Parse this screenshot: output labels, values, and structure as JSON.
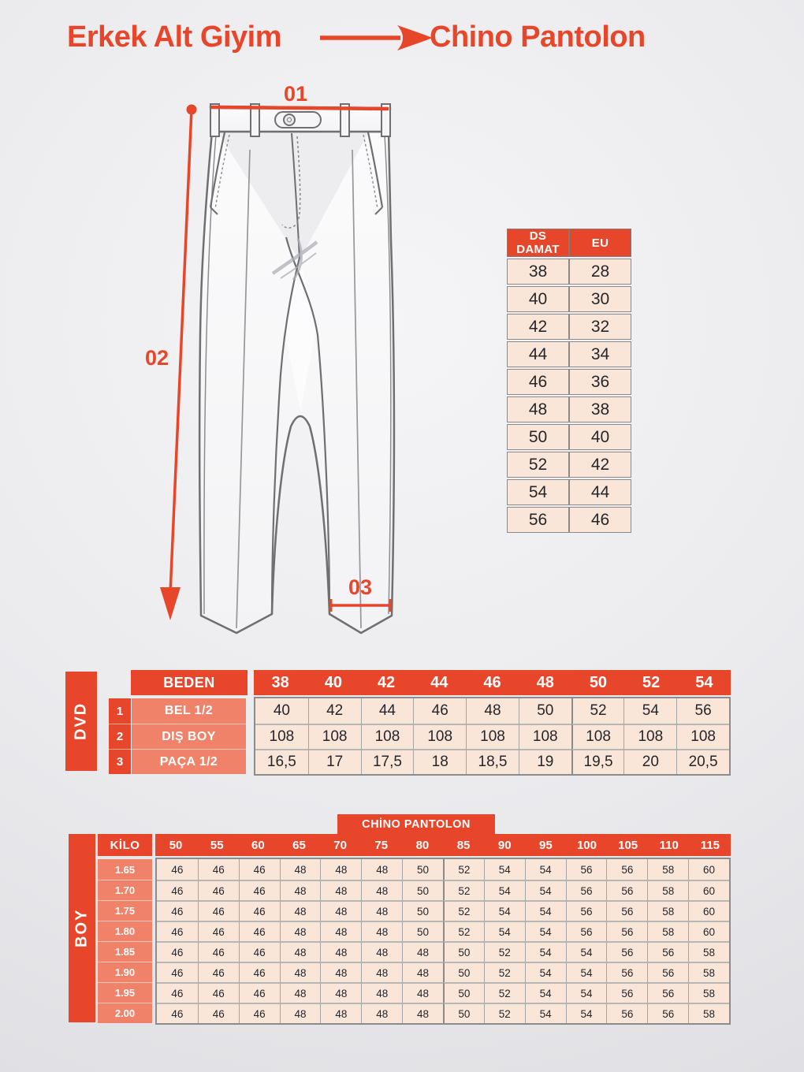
{
  "colors": {
    "orange": "#E8462B",
    "salmon": "#F0826A",
    "peach": "#FAE6D8"
  },
  "header": {
    "title_left": "Erkek Alt Giyim",
    "title_right": "Chino Pantolon"
  },
  "diagram": {
    "label_01": "01",
    "label_02": "02",
    "label_03": "03"
  },
  "conversion_table": {
    "columns": [
      "DS DAMAT",
      "EU"
    ],
    "rows": [
      [
        "38",
        "28"
      ],
      [
        "40",
        "30"
      ],
      [
        "42",
        "32"
      ],
      [
        "44",
        "34"
      ],
      [
        "46",
        "36"
      ],
      [
        "48",
        "38"
      ],
      [
        "50",
        "40"
      ],
      [
        "52",
        "42"
      ],
      [
        "54",
        "44"
      ],
      [
        "56",
        "46"
      ]
    ]
  },
  "measurement_table": {
    "side_label": "DVD",
    "header_label": "BEDEN",
    "sizes": [
      "38",
      "40",
      "42",
      "44",
      "46",
      "48",
      "50",
      "52",
      "54"
    ],
    "rows": [
      {
        "num": "1",
        "label": "BEL 1/2",
        "values": [
          "40",
          "42",
          "44",
          "46",
          "48",
          "50",
          "52",
          "54",
          "56"
        ]
      },
      {
        "num": "2",
        "label": "DIŞ BOY",
        "values": [
          "108",
          "108",
          "108",
          "108",
          "108",
          "108",
          "108",
          "108",
          "108"
        ]
      },
      {
        "num": "3",
        "label": "PAÇA 1/2",
        "values": [
          "16,5",
          "17",
          "17,5",
          "18",
          "18,5",
          "19",
          "19,5",
          "20",
          "20,5"
        ]
      }
    ]
  },
  "fit_table": {
    "title": "CHİNO PANTOLON",
    "side_label": "BOY",
    "corner_label": "KİLO",
    "weights": [
      "50",
      "55",
      "60",
      "65",
      "70",
      "75",
      "80",
      "85",
      "90",
      "95",
      "100",
      "105",
      "110",
      "115"
    ],
    "rows": [
      {
        "height": "1.65",
        "values": [
          "46",
          "46",
          "46",
          "48",
          "48",
          "48",
          "50",
          "52",
          "54",
          "54",
          "56",
          "56",
          "58",
          "60"
        ]
      },
      {
        "height": "1.70",
        "values": [
          "46",
          "46",
          "46",
          "48",
          "48",
          "48",
          "50",
          "52",
          "54",
          "54",
          "56",
          "56",
          "58",
          "60"
        ]
      },
      {
        "height": "1.75",
        "values": [
          "46",
          "46",
          "46",
          "48",
          "48",
          "48",
          "50",
          "52",
          "54",
          "54",
          "56",
          "56",
          "58",
          "60"
        ]
      },
      {
        "height": "1.80",
        "values": [
          "46",
          "46",
          "46",
          "48",
          "48",
          "48",
          "50",
          "52",
          "54",
          "54",
          "56",
          "56",
          "58",
          "60"
        ]
      },
      {
        "height": "1.85",
        "values": [
          "46",
          "46",
          "46",
          "48",
          "48",
          "48",
          "48",
          "50",
          "52",
          "54",
          "54",
          "56",
          "56",
          "58"
        ]
      },
      {
        "height": "1.90",
        "values": [
          "46",
          "46",
          "46",
          "48",
          "48",
          "48",
          "48",
          "50",
          "52",
          "54",
          "54",
          "56",
          "56",
          "58"
        ]
      },
      {
        "height": "1.95",
        "values": [
          "46",
          "46",
          "46",
          "48",
          "48",
          "48",
          "48",
          "50",
          "52",
          "54",
          "54",
          "56",
          "56",
          "58"
        ]
      },
      {
        "height": "2.00",
        "values": [
          "46",
          "46",
          "46",
          "48",
          "48",
          "48",
          "48",
          "50",
          "52",
          "54",
          "54",
          "56",
          "56",
          "58"
        ]
      }
    ]
  }
}
